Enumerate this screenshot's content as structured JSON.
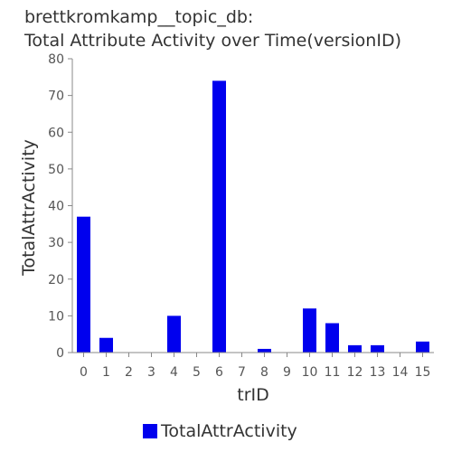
{
  "chart_data": {
    "type": "bar",
    "title_lines": [
      "brettkromkamp__topic_db:",
      "Total Attribute Activity over Time(versionID)"
    ],
    "xlabel": "trID",
    "ylabel": "TotalAttrActivity",
    "categories": [
      "0",
      "1",
      "2",
      "3",
      "4",
      "5",
      "6",
      "7",
      "8",
      "9",
      "10",
      "11",
      "12",
      "13",
      "14",
      "15"
    ],
    "series": [
      {
        "name": "TotalAttrActivity",
        "values": [
          37,
          4,
          0,
          0,
          10,
          0,
          74,
          0,
          1,
          0,
          12,
          8,
          2,
          2,
          0,
          3
        ]
      }
    ],
    "ylim": [
      0,
      80
    ],
    "yticks": [
      0,
      10,
      20,
      30,
      40,
      50,
      60,
      70,
      80
    ],
    "grid": false,
    "legend_position": "bottom-center",
    "bar_color": "#0000ee"
  }
}
